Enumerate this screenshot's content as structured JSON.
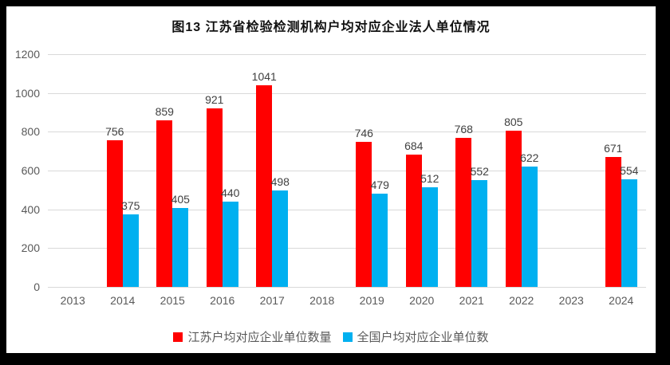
{
  "chart_data": {
    "type": "bar",
    "title": "图13 江苏省检验检测机构户均对应企业法人单位情况",
    "categories": [
      "2013",
      "2014",
      "2015",
      "2016",
      "2017",
      "2018",
      "2019",
      "2020",
      "2021",
      "2022",
      "2023",
      "2024"
    ],
    "series": [
      {
        "name": "江苏户均对应企业单位数量",
        "color": "#ff0000",
        "values": [
          null,
          756,
          859,
          921,
          1041,
          null,
          746,
          684,
          768,
          805,
          null,
          671
        ]
      },
      {
        "name": "全国户均对应企业单位数",
        "color": "#00b0f0",
        "values": [
          null,
          375,
          405,
          440,
          498,
          null,
          479,
          512,
          552,
          622,
          null,
          554
        ]
      }
    ],
    "ylim": [
      0,
      1200
    ],
    "yticks": [
      0,
      200,
      400,
      600,
      800,
      1000,
      1200
    ],
    "grid": true,
    "legend_position": "bottom",
    "data_labels": true
  },
  "style": {
    "frame_background": "#000000",
    "chart_background": "#ffffff",
    "gridline_color": "#d9d9d9",
    "axis_label_color": "#595959",
    "value_label_color": "#404040",
    "title_color": "#111111"
  }
}
